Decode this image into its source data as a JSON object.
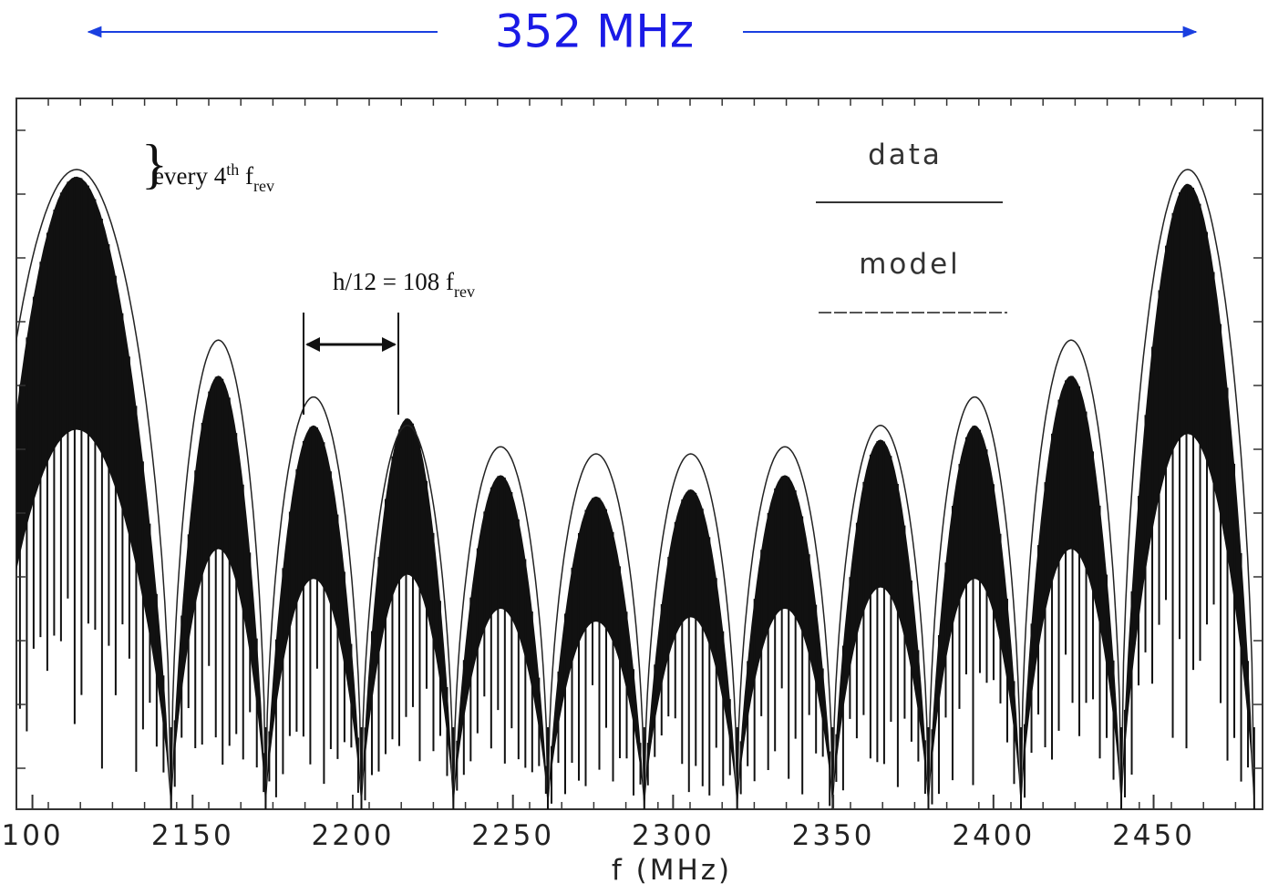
{
  "header": {
    "title": "352 MHz"
  },
  "chart_data": {
    "type": "spectrum",
    "x_label": "f (MHz)",
    "xlim": [
      2095,
      2484
    ],
    "ylim": [
      0,
      1
    ],
    "xticks": [
      {
        "value": 2100,
        "label": "100"
      },
      2150,
      2200,
      2250,
      2300,
      2350,
      2400,
      2450
    ],
    "lobe_edges": [
      2084.3,
      2143.3,
      2172.8,
      2202.7,
      2231.4,
      2260.9,
      2291.0,
      2320.0,
      2349.8,
      2379.7,
      2408.6,
      2439.9,
      2481.4
    ],
    "series": [
      {
        "name": "data",
        "color": "#111111",
        "values": [
          0.89,
          0.61,
          0.54,
          0.55,
          0.47,
          0.44,
          0.45,
          0.47,
          0.52,
          0.54,
          0.61,
          0.88
        ]
      },
      {
        "name": "model",
        "color": "#222222",
        "values": [
          0.9,
          0.66,
          0.58,
          0.54,
          0.51,
          0.5,
          0.5,
          0.51,
          0.54,
          0.58,
          0.66,
          0.9
        ]
      }
    ],
    "annotations": [
      {
        "text": "every 4",
        "sup": "th",
        "base": " f",
        "sub": "rev"
      },
      {
        "text": "h/12 = 108 f",
        "sub": "rev"
      }
    ]
  }
}
